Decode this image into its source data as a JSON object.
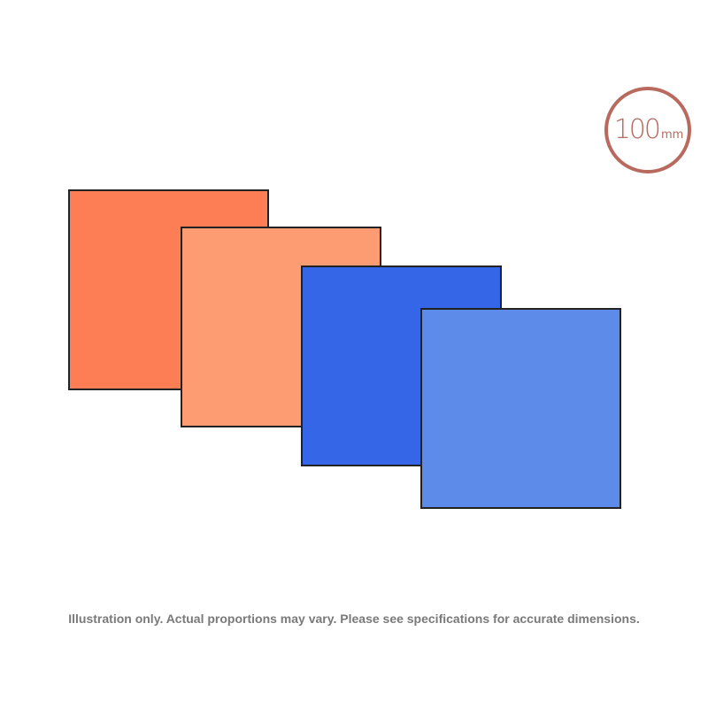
{
  "badge": {
    "value": "100",
    "unit": "mm",
    "color": "#b86a5e"
  },
  "swatches": [
    {
      "color": "#fd7d55"
    },
    {
      "color": "#fd9b73"
    },
    {
      "color": "#3466e7"
    },
    {
      "color": "#5c8bea"
    }
  ],
  "outline_color": "#222222",
  "disclaimer": "Illustration only. Actual proportions may vary. Please see specifications for accurate dimensions."
}
